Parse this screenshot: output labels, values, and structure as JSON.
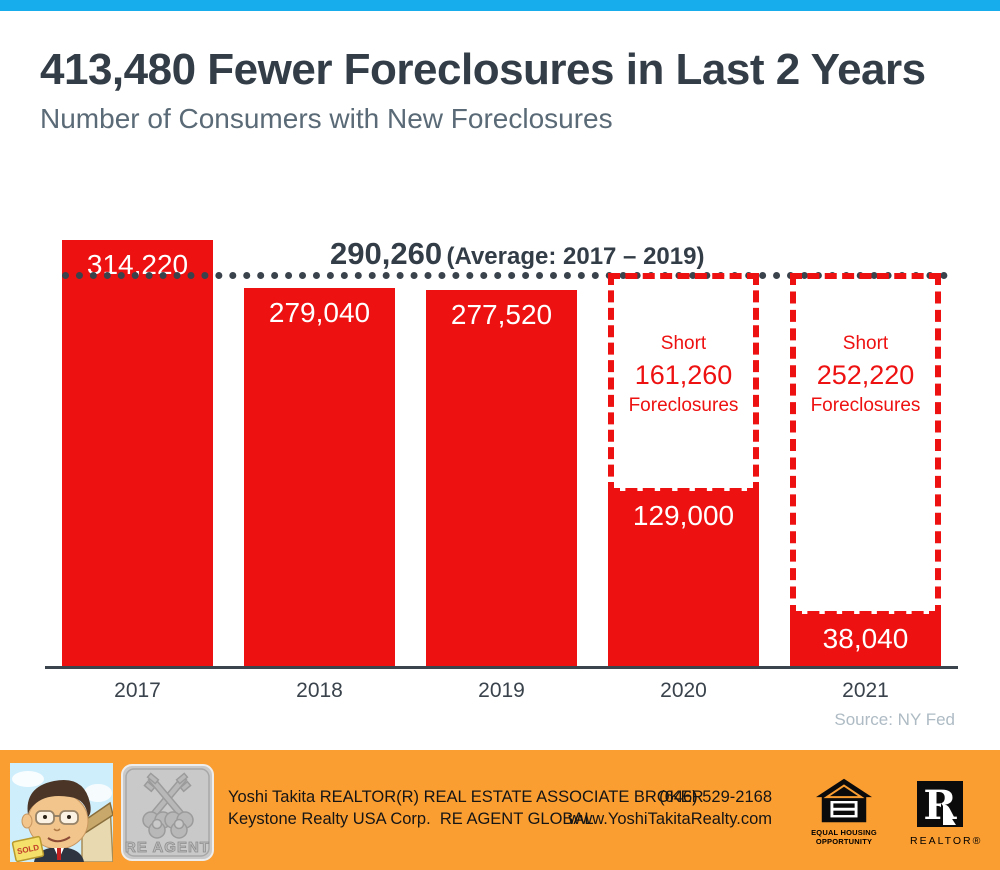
{
  "header": {
    "title": "413,480 Fewer Foreclosures in Last 2 Years",
    "subtitle": "Number of Consumers with New Foreclosures"
  },
  "chart_data": {
    "type": "bar",
    "title": "413,480 Fewer Foreclosures in Last 2 Years",
    "subtitle": "Number of Consumers with New Foreclosures",
    "categories": [
      "2017",
      "2018",
      "2019",
      "2020",
      "2021"
    ],
    "values": [
      314220,
      279040,
      277520,
      129000,
      38040
    ],
    "value_labels": [
      "314,220",
      "279,040",
      "277,520",
      "129,000",
      "38,040"
    ],
    "ylim": [
      0,
      320000
    ],
    "grid": false,
    "legend": "none",
    "bar_color": "#ee1111",
    "average_line": {
      "value": 290260,
      "label_value": "290,260",
      "label_note": "(Average: 2017 – 2019)",
      "style": "dotted",
      "color": "#3a424c"
    },
    "shortfall_boxes": [
      {
        "category": "2020",
        "value": 161260,
        "line1": "Short",
        "line2": "161,260",
        "line3": "Foreclosures"
      },
      {
        "category": "2021",
        "value": 252220,
        "line1": "Short",
        "line2": "252,220",
        "line3": "Foreclosures"
      }
    ],
    "source": "Source: NY Fed"
  },
  "footer": {
    "agent_line1": "Yoshi Takita REALTOR(R) REAL ESTATE ASSOCIATE BROKER",
    "agent_line2": "Keystone Realty USA Corp.  RE AGENT GLOBAL",
    "phone": "(646) 529-2168",
    "website": "www.YoshiTakitaRealty.com",
    "avatar_sign": "SOLD",
    "reagent_logo_text": "RE AGENT",
    "eho_line1": "EQUAL HOUSING",
    "eho_line2": "OPPORTUNITY",
    "realtor_letter": "R",
    "realtor_text": "REALTOR®"
  },
  "colors": {
    "accent_top_bar": "#17acec",
    "bar_red": "#ee1111",
    "heading_dark": "#333d47",
    "subtitle_gray": "#5a6a76",
    "dotted_line": "#3a424c",
    "source_gray": "#aebbc4",
    "footer_orange": "#fb9e32"
  },
  "icons": {
    "reagent_logo": "crossed-keys-badge",
    "eho_logo": "equal-housing-house",
    "realtor_logo": "realtor-r-block",
    "avatar": "agent-caricature"
  }
}
